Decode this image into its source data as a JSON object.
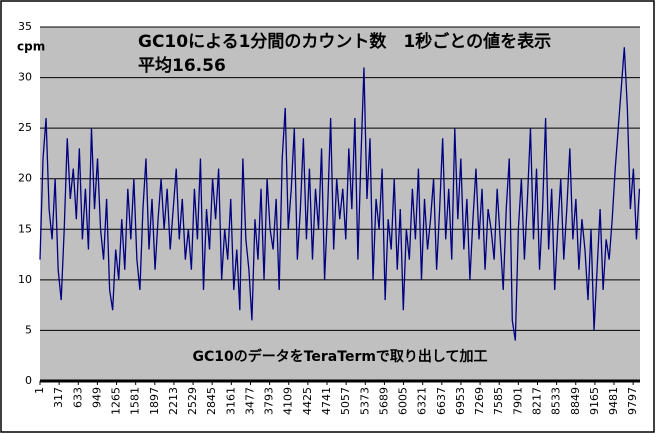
{
  "chart_data": {
    "type": "line",
    "title": "GC10による1分間のカウント数　1秒ごとの値を表示",
    "subtitle": "平均16.56",
    "y_label": "cpm",
    "annotation": "GC10のデータをTeraTermで取り出して加工",
    "xlim": [
      1,
      9910
    ],
    "xticks": [
      1,
      317,
      633,
      949,
      1265,
      1581,
      1897,
      2213,
      2529,
      2845,
      3161,
      3477,
      3793,
      4109,
      4425,
      4741,
      5057,
      5373,
      5689,
      6005,
      6321,
      6637,
      6953,
      7269,
      7585,
      7901,
      8217,
      8533,
      8849,
      9165,
      9481,
      9797
    ],
    "ylim": [
      0,
      35
    ],
    "yticks": [
      0,
      5,
      10,
      15,
      20,
      25,
      30,
      35
    ],
    "grid": true,
    "series": [
      {
        "color": "#000080",
        "x": [
          1,
          51,
          101,
          151,
          201,
          251,
          301,
          351,
          401,
          451,
          501,
          551,
          601,
          651,
          701,
          751,
          801,
          851,
          901,
          951,
          1001,
          1051,
          1101,
          1151,
          1201,
          1251,
          1301,
          1351,
          1401,
          1451,
          1501,
          1551,
          1601,
          1651,
          1701,
          1751,
          1801,
          1851,
          1901,
          1951,
          2001,
          2051,
          2101,
          2151,
          2201,
          2251,
          2301,
          2351,
          2401,
          2451,
          2501,
          2551,
          2601,
          2651,
          2701,
          2751,
          2801,
          2851,
          2901,
          2951,
          3001,
          3051,
          3101,
          3151,
          3201,
          3251,
          3301,
          3351,
          3401,
          3451,
          3501,
          3551,
          3601,
          3651,
          3701,
          3751,
          3801,
          3851,
          3901,
          3951,
          4001,
          4051,
          4101,
          4151,
          4201,
          4251,
          4301,
          4351,
          4401,
          4451,
          4501,
          4551,
          4601,
          4651,
          4701,
          4751,
          4801,
          4851,
          4901,
          4951,
          5001,
          5051,
          5101,
          5151,
          5201,
          5251,
          5301,
          5351,
          5401,
          5451,
          5501,
          5551,
          5601,
          5651,
          5701,
          5751,
          5801,
          5851,
          5901,
          5951,
          6001,
          6051,
          6101,
          6151,
          6201,
          6251,
          6301,
          6351,
          6401,
          6451,
          6501,
          6551,
          6601,
          6651,
          6701,
          6751,
          6801,
          6851,
          6901,
          6951,
          7001,
          7051,
          7101,
          7151,
          7201,
          7251,
          7301,
          7351,
          7401,
          7451,
          7501,
          7551,
          7601,
          7651,
          7701,
          7751,
          7801,
          7851,
          7901,
          7951,
          8001,
          8051,
          8101,
          8151,
          8201,
          8251,
          8301,
          8351,
          8401,
          8451,
          8501,
          8551,
          8601,
          8651,
          8701,
          8751,
          8801,
          8851,
          8901,
          8951,
          9001,
          9051,
          9101,
          9151,
          9201,
          9251,
          9301,
          9351,
          9401,
          9451,
          9501,
          9551,
          9601,
          9651,
          9701,
          9751,
          9801,
          9851,
          9901
        ],
        "values": [
          12,
          22,
          26,
          17,
          14,
          20,
          11,
          8,
          15,
          24,
          18,
          21,
          16,
          23,
          14,
          19,
          13,
          25,
          17,
          22,
          15,
          12,
          18,
          9,
          7,
          13,
          10,
          16,
          11,
          19,
          14,
          20,
          12,
          9,
          17,
          22,
          13,
          18,
          11,
          16,
          20,
          15,
          19,
          13,
          17,
          21,
          14,
          18,
          12,
          15,
          11,
          19,
          14,
          22,
          9,
          17,
          13,
          20,
          16,
          21,
          10,
          15,
          12,
          18,
          9,
          13,
          7,
          22,
          14,
          11,
          6,
          16,
          12,
          19,
          10,
          20,
          15,
          13,
          18,
          9,
          22,
          27,
          15,
          19,
          25,
          12,
          17,
          24,
          14,
          21,
          12,
          19,
          15,
          23,
          10,
          17,
          26,
          13,
          20,
          16,
          19,
          14,
          23,
          17,
          26,
          12,
          22,
          31,
          18,
          24,
          10,
          18,
          15,
          21,
          8,
          16,
          13,
          20,
          11,
          17,
          7,
          15,
          12,
          19,
          14,
          21,
          10,
          18,
          13,
          16,
          20,
          11,
          17,
          24,
          14,
          19,
          12,
          25,
          16,
          22,
          13,
          18,
          10,
          16,
          21,
          14,
          19,
          11,
          17,
          15,
          12,
          19,
          14,
          9,
          17,
          22,
          6,
          4,
          15,
          20,
          12,
          18,
          25,
          14,
          21,
          11,
          17,
          26,
          13,
          19,
          9,
          15,
          20,
          12,
          17,
          23,
          14,
          18,
          11,
          16,
          13,
          8,
          15,
          5,
          11,
          17,
          9,
          14,
          12,
          16,
          21,
          25,
          29,
          33,
          27,
          17,
          21,
          14,
          19
        ]
      }
    ]
  }
}
